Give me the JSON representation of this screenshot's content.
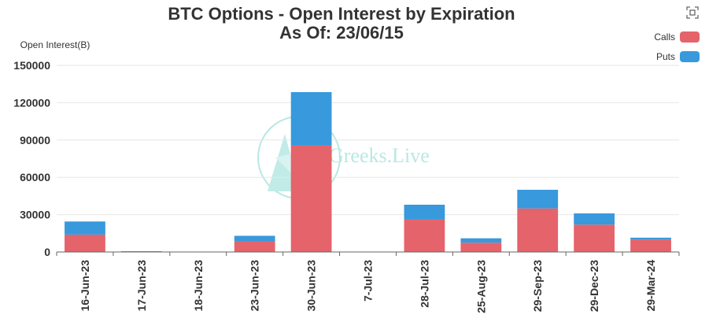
{
  "chart_data": {
    "type": "bar",
    "stacked": true,
    "title": "BTC Options - Open Interest by Expiration",
    "subtitle": "As Of: 23/06/15",
    "ylabel": "Open Interest(B)",
    "xlabel": "",
    "ylim": [
      0,
      150000
    ],
    "yticks": [
      0,
      30000,
      60000,
      90000,
      120000,
      150000
    ],
    "grid": true,
    "legend_position": "top-right",
    "categories": [
      "16-Jun-23",
      "17-Jun-23",
      "18-Jun-23",
      "23-Jun-23",
      "30-Jun-23",
      "7-Jul-23",
      "28-Jul-23",
      "25-Aug-23",
      "29-Sep-23",
      "29-Dec-23",
      "29-Mar-24"
    ],
    "series": [
      {
        "name": "Calls",
        "color": "#e5636a",
        "values": [
          14000,
          300,
          100,
          8500,
          85500,
          0,
          26000,
          7500,
          35000,
          22000,
          10000
        ]
      },
      {
        "name": "Puts",
        "color": "#3899dc",
        "values": [
          10500,
          300,
          100,
          4500,
          43000,
          0,
          12000,
          3500,
          15000,
          9000,
          1500
        ]
      }
    ]
  },
  "watermark": "Greeks.Live",
  "toolbox": {
    "icon": "restore-icon"
  }
}
